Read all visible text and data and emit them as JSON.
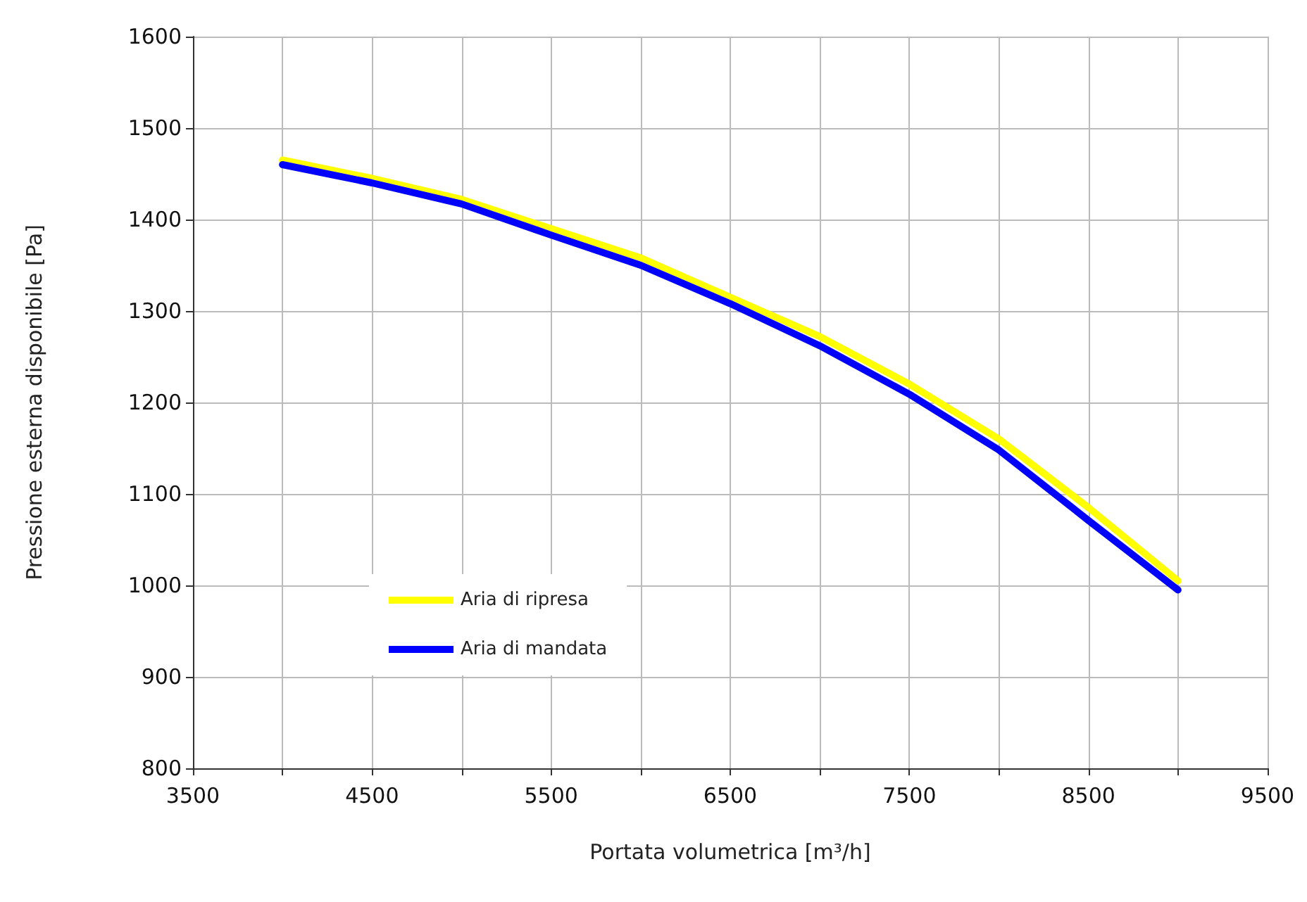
{
  "chart_data": {
    "type": "line",
    "xlabel": "Portata volumetrica [m³/h]",
    "ylabel": "Pressione esterna disponibile [Pa]",
    "x": [
      4000,
      4500,
      5000,
      5500,
      6000,
      6500,
      7000,
      7500,
      8000,
      8500,
      9000
    ],
    "series": [
      {
        "name": "Aria di ripresa",
        "color": "#ffff00",
        "values": [
          1465,
          1445,
          1422,
          1390,
          1358,
          1315,
          1272,
          1220,
          1160,
          1085,
          1005
        ]
      },
      {
        "name": "Aria di mandata",
        "color": "#0000ff",
        "values": [
          1460,
          1440,
          1417,
          1383,
          1350,
          1308,
          1262,
          1209,
          1148,
          1071,
          995
        ]
      }
    ],
    "xlim": [
      3500,
      9500
    ],
    "xticks": [
      3500,
      {
        "value": 4000,
        "label": null
      },
      4500,
      {
        "value": 5000,
        "label": null
      },
      5500,
      {
        "value": 6000,
        "label": null
      },
      6500,
      {
        "value": 7000,
        "label": null
      },
      7500,
      {
        "value": 8000,
        "label": null
      },
      8500,
      {
        "value": 9000,
        "label": null
      },
      9500
    ],
    "ylim": [
      800,
      1600
    ],
    "yticks": [
      800,
      900,
      1000,
      1100,
      1200,
      1300,
      1400,
      1500,
      1600
    ],
    "grid": true,
    "legend": "bottom left",
    "marker": "none",
    "line_style": "solid"
  }
}
